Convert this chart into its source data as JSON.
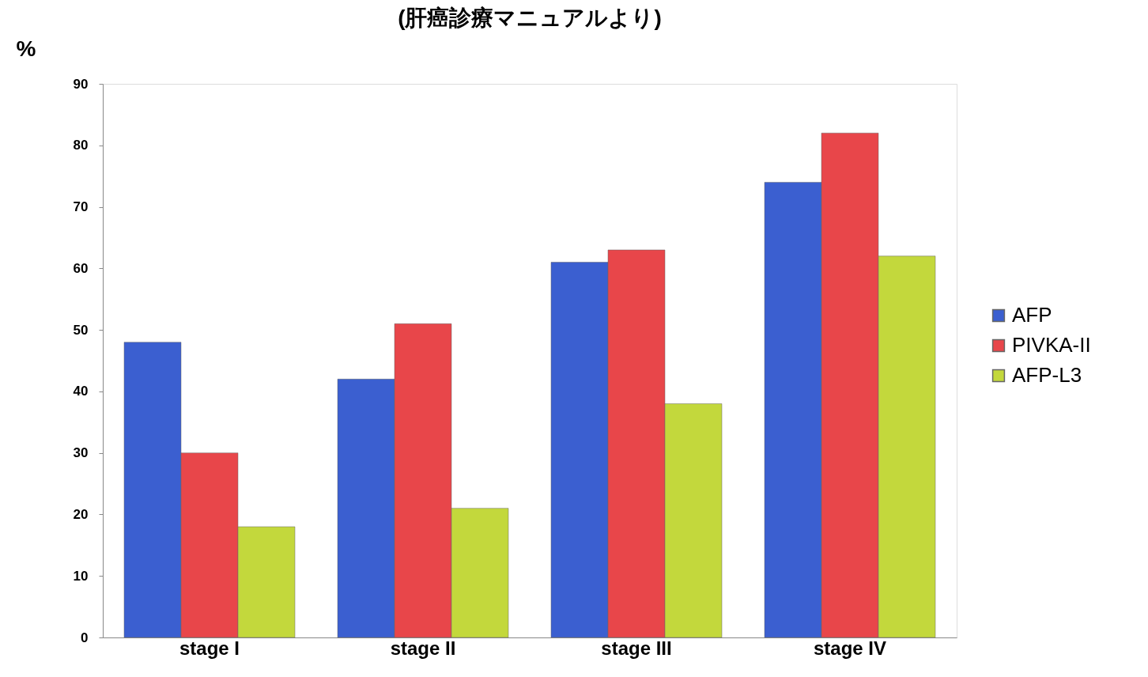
{
  "chart_data": {
    "type": "bar",
    "title": "(肝癌診療マニュアルより)",
    "ylabel": "%",
    "categories": [
      "stage I",
      "stage II",
      "stage III",
      "stage IV"
    ],
    "series": [
      {
        "name": "AFP",
        "color": "#3b5fd0",
        "values": [
          48,
          42,
          61,
          74
        ]
      },
      {
        "name": "PIVKA-II",
        "color": "#e8464a",
        "values": [
          30,
          51,
          63,
          82
        ]
      },
      {
        "name": "AFP-L3",
        "color": "#c3d83c",
        "values": [
          18,
          21,
          38,
          62
        ]
      }
    ],
    "ylim": [
      0,
      90
    ],
    "yticks": [
      0,
      10,
      20,
      30,
      40,
      50,
      60,
      70,
      80,
      90
    ],
    "grid": false,
    "legend": "right"
  }
}
